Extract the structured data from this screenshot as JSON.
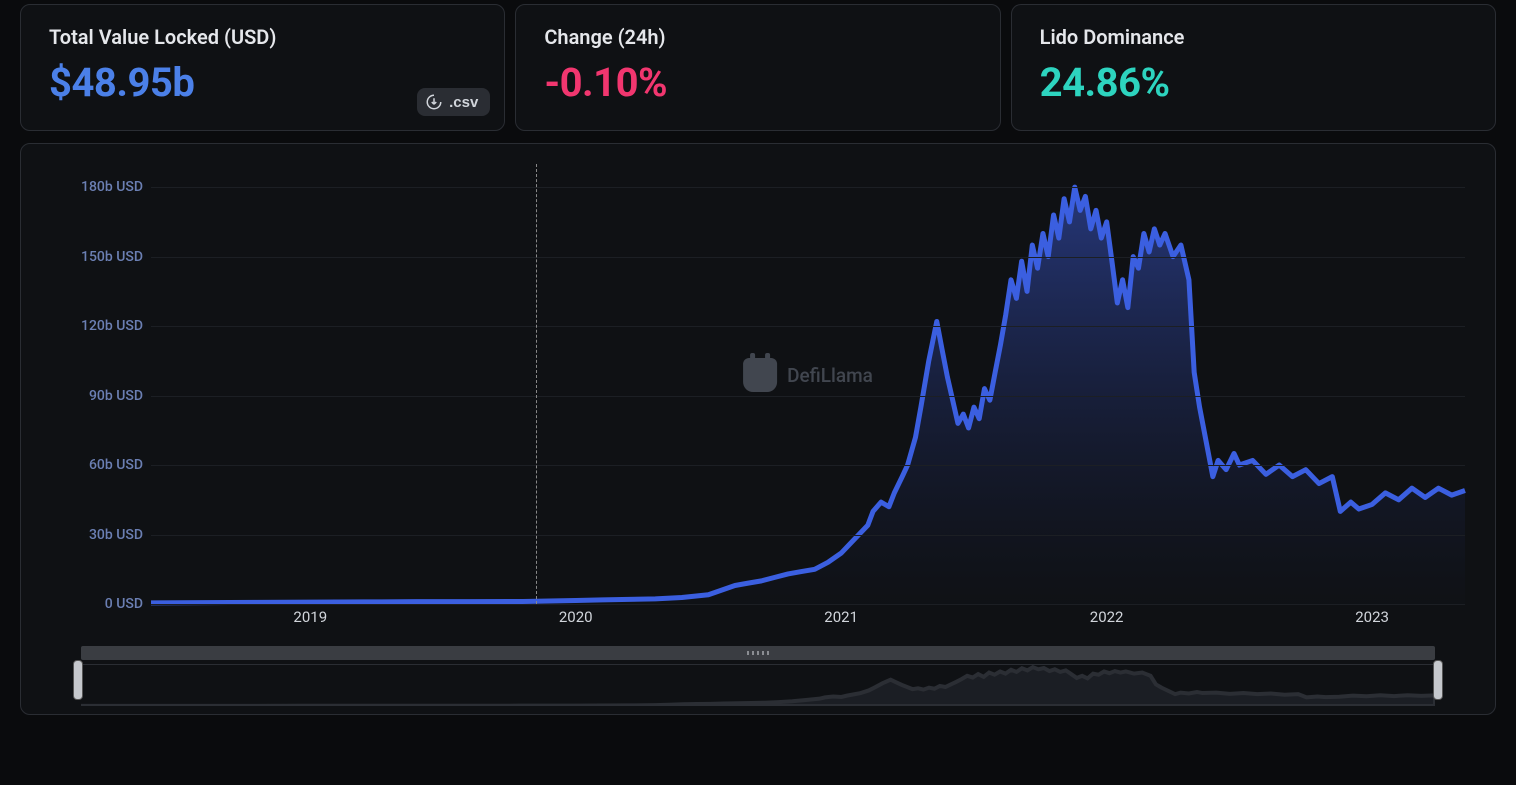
{
  "stats": [
    {
      "label": "Total Value Locked (USD)",
      "value": "$48.95b",
      "color_class": "val-blue",
      "has_csv": true,
      "csv_label": ".csv"
    },
    {
      "label": "Change (24h)",
      "value": "-0.10%",
      "color_class": "val-pink",
      "has_csv": false
    },
    {
      "label": "Lido Dominance",
      "value": "24.86%",
      "color_class": "val-teal",
      "has_csv": false
    }
  ],
  "chart": {
    "type": "area",
    "watermark_text": "DefiLlama",
    "line_color": "#3b5fe0",
    "fill_top": "#2a3e8c",
    "fill_bottom": "rgba(26,34,72,0.05)",
    "grid_color": "#1c1f24",
    "axis_label_color": "#6b7fb3",
    "x_label_color": "#d1d5db",
    "background_color": "#0f1114",
    "ymin": 0,
    "ymax": 190,
    "y_ticks": [
      {
        "v": 0,
        "label": "0 USD"
      },
      {
        "v": 30,
        "label": "30b USD"
      },
      {
        "v": 60,
        "label": "60b USD"
      },
      {
        "v": 90,
        "label": "90b USD"
      },
      {
        "v": 120,
        "label": "120b USD"
      },
      {
        "v": 150,
        "label": "150b USD"
      },
      {
        "v": 180,
        "label": "180b USD"
      }
    ],
    "xmin": 2018.4,
    "xmax": 2023.35,
    "x_ticks": [
      {
        "v": 2019,
        "label": "2019"
      },
      {
        "v": 2020,
        "label": "2020"
      },
      {
        "v": 2021,
        "label": "2021"
      },
      {
        "v": 2022,
        "label": "2022"
      },
      {
        "v": 2023,
        "label": "2023"
      }
    ],
    "crosshair_x": 2019.85,
    "series": [
      {
        "x": 2018.4,
        "y": 0.5
      },
      {
        "x": 2018.6,
        "y": 0.6
      },
      {
        "x": 2018.8,
        "y": 0.7
      },
      {
        "x": 2019.0,
        "y": 0.8
      },
      {
        "x": 2019.2,
        "y": 0.9
      },
      {
        "x": 2019.4,
        "y": 1.0
      },
      {
        "x": 2019.6,
        "y": 1.0
      },
      {
        "x": 2019.8,
        "y": 1.1
      },
      {
        "x": 2020.0,
        "y": 1.5
      },
      {
        "x": 2020.1,
        "y": 1.8
      },
      {
        "x": 2020.2,
        "y": 2.0
      },
      {
        "x": 2020.3,
        "y": 2.2
      },
      {
        "x": 2020.4,
        "y": 2.8
      },
      {
        "x": 2020.5,
        "y": 4.0
      },
      {
        "x": 2020.55,
        "y": 6.0
      },
      {
        "x": 2020.6,
        "y": 8.0
      },
      {
        "x": 2020.65,
        "y": 9.0
      },
      {
        "x": 2020.7,
        "y": 10.0
      },
      {
        "x": 2020.75,
        "y": 11.5
      },
      {
        "x": 2020.8,
        "y": 13.0
      },
      {
        "x": 2020.85,
        "y": 14.0
      },
      {
        "x": 2020.9,
        "y": 15.0
      },
      {
        "x": 2020.95,
        "y": 18.0
      },
      {
        "x": 2021.0,
        "y": 22.0
      },
      {
        "x": 2021.05,
        "y": 28.0
      },
      {
        "x": 2021.1,
        "y": 34.0
      },
      {
        "x": 2021.12,
        "y": 40.0
      },
      {
        "x": 2021.15,
        "y": 44.0
      },
      {
        "x": 2021.18,
        "y": 42.0
      },
      {
        "x": 2021.2,
        "y": 48.0
      },
      {
        "x": 2021.23,
        "y": 55.0
      },
      {
        "x": 2021.25,
        "y": 60.0
      },
      {
        "x": 2021.28,
        "y": 72.0
      },
      {
        "x": 2021.3,
        "y": 85.0
      },
      {
        "x": 2021.33,
        "y": 105.0
      },
      {
        "x": 2021.36,
        "y": 122.0
      },
      {
        "x": 2021.38,
        "y": 110.0
      },
      {
        "x": 2021.4,
        "y": 98.0
      },
      {
        "x": 2021.42,
        "y": 88.0
      },
      {
        "x": 2021.44,
        "y": 78.0
      },
      {
        "x": 2021.46,
        "y": 82.0
      },
      {
        "x": 2021.48,
        "y": 76.0
      },
      {
        "x": 2021.5,
        "y": 85.0
      },
      {
        "x": 2021.52,
        "y": 80.0
      },
      {
        "x": 2021.54,
        "y": 93.0
      },
      {
        "x": 2021.56,
        "y": 88.0
      },
      {
        "x": 2021.58,
        "y": 100.0
      },
      {
        "x": 2021.6,
        "y": 112.0
      },
      {
        "x": 2021.62,
        "y": 125.0
      },
      {
        "x": 2021.64,
        "y": 140.0
      },
      {
        "x": 2021.66,
        "y": 132.0
      },
      {
        "x": 2021.68,
        "y": 148.0
      },
      {
        "x": 2021.7,
        "y": 135.0
      },
      {
        "x": 2021.72,
        "y": 155.0
      },
      {
        "x": 2021.74,
        "y": 145.0
      },
      {
        "x": 2021.76,
        "y": 160.0
      },
      {
        "x": 2021.78,
        "y": 150.0
      },
      {
        "x": 2021.8,
        "y": 168.0
      },
      {
        "x": 2021.82,
        "y": 158.0
      },
      {
        "x": 2021.84,
        "y": 175.0
      },
      {
        "x": 2021.86,
        "y": 165.0
      },
      {
        "x": 2021.88,
        "y": 180.0
      },
      {
        "x": 2021.9,
        "y": 170.0
      },
      {
        "x": 2021.92,
        "y": 176.0
      },
      {
        "x": 2021.94,
        "y": 162.0
      },
      {
        "x": 2021.96,
        "y": 170.0
      },
      {
        "x": 2021.98,
        "y": 158.0
      },
      {
        "x": 2022.0,
        "y": 165.0
      },
      {
        "x": 2022.02,
        "y": 148.0
      },
      {
        "x": 2022.04,
        "y": 130.0
      },
      {
        "x": 2022.06,
        "y": 140.0
      },
      {
        "x": 2022.08,
        "y": 128.0
      },
      {
        "x": 2022.1,
        "y": 150.0
      },
      {
        "x": 2022.12,
        "y": 145.0
      },
      {
        "x": 2022.14,
        "y": 160.0
      },
      {
        "x": 2022.16,
        "y": 152.0
      },
      {
        "x": 2022.18,
        "y": 162.0
      },
      {
        "x": 2022.2,
        "y": 155.0
      },
      {
        "x": 2022.22,
        "y": 160.0
      },
      {
        "x": 2022.25,
        "y": 150.0
      },
      {
        "x": 2022.28,
        "y": 155.0
      },
      {
        "x": 2022.31,
        "y": 140.0
      },
      {
        "x": 2022.33,
        "y": 100.0
      },
      {
        "x": 2022.35,
        "y": 85.0
      },
      {
        "x": 2022.4,
        "y": 55.0
      },
      {
        "x": 2022.42,
        "y": 62.0
      },
      {
        "x": 2022.45,
        "y": 58.0
      },
      {
        "x": 2022.48,
        "y": 65.0
      },
      {
        "x": 2022.5,
        "y": 60.0
      },
      {
        "x": 2022.55,
        "y": 62.0
      },
      {
        "x": 2022.6,
        "y": 56.0
      },
      {
        "x": 2022.65,
        "y": 60.0
      },
      {
        "x": 2022.7,
        "y": 55.0
      },
      {
        "x": 2022.75,
        "y": 58.0
      },
      {
        "x": 2022.8,
        "y": 52.0
      },
      {
        "x": 2022.85,
        "y": 55.0
      },
      {
        "x": 2022.88,
        "y": 40.0
      },
      {
        "x": 2022.92,
        "y": 44.0
      },
      {
        "x": 2022.95,
        "y": 41.0
      },
      {
        "x": 2023.0,
        "y": 43.0
      },
      {
        "x": 2023.05,
        "y": 48.0
      },
      {
        "x": 2023.1,
        "y": 45.0
      },
      {
        "x": 2023.15,
        "y": 50.0
      },
      {
        "x": 2023.2,
        "y": 46.0
      },
      {
        "x": 2023.25,
        "y": 50.0
      },
      {
        "x": 2023.3,
        "y": 47.0
      },
      {
        "x": 2023.35,
        "y": 49.0
      }
    ]
  }
}
